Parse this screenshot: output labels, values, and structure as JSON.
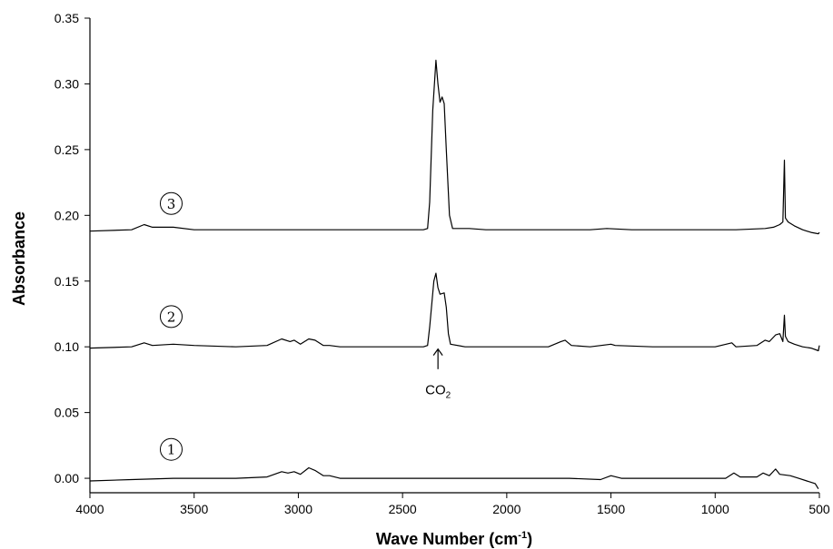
{
  "chart_data": {
    "type": "line",
    "title": "",
    "xlabel": "Wave Number (cm",
    "xlabel_sup": "-1",
    "xlabel_close": ")",
    "ylabel": "Absorbance",
    "xlim": [
      4000,
      500
    ],
    "ylim": [
      -0.011,
      0.35
    ],
    "x_ticks": [
      4000,
      3500,
      3000,
      2500,
      2000,
      1500,
      1000,
      500
    ],
    "x_tick_labels": [
      "4000",
      "3500",
      "3000",
      "2500",
      "2000",
      "1500",
      "1000",
      "500"
    ],
    "y_ticks": [
      0.0,
      0.05,
      0.1,
      0.15,
      0.2,
      0.25,
      0.3,
      0.35
    ],
    "y_tick_labels": [
      "0.00",
      "0.05",
      "0.10",
      "0.15",
      "0.20",
      "0.25",
      "0.30",
      "0.35"
    ],
    "grid": false,
    "series": [
      {
        "marker": "1",
        "marker_pos": [
          3610,
          0.022
        ],
        "points": [
          [
            4000,
            -0.002
          ],
          [
            3800,
            -0.001
          ],
          [
            3600,
            0.0
          ],
          [
            3300,
            0.0
          ],
          [
            3150,
            0.001
          ],
          [
            3080,
            0.005
          ],
          [
            3050,
            0.004
          ],
          [
            3020,
            0.005
          ],
          [
            2990,
            0.003
          ],
          [
            2950,
            0.008
          ],
          [
            2920,
            0.006
          ],
          [
            2880,
            0.002
          ],
          [
            2850,
            0.002
          ],
          [
            2800,
            0.0
          ],
          [
            2500,
            0.0
          ],
          [
            2350,
            0.0
          ],
          [
            2000,
            0.0
          ],
          [
            1700,
            0.0
          ],
          [
            1550,
            -0.001
          ],
          [
            1500,
            0.002
          ],
          [
            1450,
            0.0
          ],
          [
            1200,
            0.0
          ],
          [
            950,
            0.0
          ],
          [
            910,
            0.004
          ],
          [
            880,
            0.001
          ],
          [
            800,
            0.001
          ],
          [
            770,
            0.004
          ],
          [
            740,
            0.002
          ],
          [
            710,
            0.007
          ],
          [
            690,
            0.003
          ],
          [
            640,
            0.002
          ],
          [
            600,
            0.0
          ],
          [
            560,
            -0.002
          ],
          [
            520,
            -0.004
          ],
          [
            505,
            -0.008
          ]
        ]
      },
      {
        "marker": "2",
        "marker_pos": [
          3610,
          0.123
        ],
        "points": [
          [
            4000,
            0.099
          ],
          [
            3800,
            0.1
          ],
          [
            3740,
            0.103
          ],
          [
            3700,
            0.101
          ],
          [
            3600,
            0.102
          ],
          [
            3500,
            0.101
          ],
          [
            3300,
            0.1
          ],
          [
            3150,
            0.101
          ],
          [
            3080,
            0.106
          ],
          [
            3040,
            0.104
          ],
          [
            3020,
            0.105
          ],
          [
            2990,
            0.102
          ],
          [
            2950,
            0.106
          ],
          [
            2920,
            0.105
          ],
          [
            2880,
            0.101
          ],
          [
            2850,
            0.101
          ],
          [
            2800,
            0.1
          ],
          [
            2600,
            0.1
          ],
          [
            2400,
            0.1
          ],
          [
            2380,
            0.101
          ],
          [
            2370,
            0.115
          ],
          [
            2350,
            0.15
          ],
          [
            2340,
            0.156
          ],
          [
            2330,
            0.145
          ],
          [
            2320,
            0.14
          ],
          [
            2300,
            0.141
          ],
          [
            2290,
            0.13
          ],
          [
            2280,
            0.11
          ],
          [
            2270,
            0.102
          ],
          [
            2200,
            0.1
          ],
          [
            2000,
            0.1
          ],
          [
            1800,
            0.1
          ],
          [
            1740,
            0.104
          ],
          [
            1720,
            0.105
          ],
          [
            1690,
            0.101
          ],
          [
            1600,
            0.1
          ],
          [
            1500,
            0.102
          ],
          [
            1480,
            0.101
          ],
          [
            1300,
            0.1
          ],
          [
            1000,
            0.1
          ],
          [
            920,
            0.103
          ],
          [
            900,
            0.1
          ],
          [
            800,
            0.101
          ],
          [
            760,
            0.105
          ],
          [
            740,
            0.104
          ],
          [
            710,
            0.109
          ],
          [
            690,
            0.11
          ],
          [
            675,
            0.104
          ],
          [
            668,
            0.124
          ],
          [
            663,
            0.108
          ],
          [
            650,
            0.104
          ],
          [
            620,
            0.102
          ],
          [
            580,
            0.1
          ],
          [
            540,
            0.099
          ],
          [
            505,
            0.097
          ],
          [
            500,
            0.101
          ]
        ]
      },
      {
        "marker": "3",
        "marker_pos": [
          3610,
          0.209
        ],
        "points": [
          [
            4000,
            0.188
          ],
          [
            3800,
            0.189
          ],
          [
            3740,
            0.193
          ],
          [
            3700,
            0.191
          ],
          [
            3600,
            0.191
          ],
          [
            3500,
            0.189
          ],
          [
            3200,
            0.189
          ],
          [
            2700,
            0.189
          ],
          [
            2400,
            0.189
          ],
          [
            2380,
            0.19
          ],
          [
            2370,
            0.21
          ],
          [
            2355,
            0.28
          ],
          [
            2340,
            0.318
          ],
          [
            2330,
            0.3
          ],
          [
            2320,
            0.286
          ],
          [
            2310,
            0.29
          ],
          [
            2300,
            0.285
          ],
          [
            2290,
            0.25
          ],
          [
            2275,
            0.2
          ],
          [
            2260,
            0.19
          ],
          [
            2180,
            0.19
          ],
          [
            2100,
            0.189
          ],
          [
            1600,
            0.189
          ],
          [
            1520,
            0.19
          ],
          [
            1400,
            0.189
          ],
          [
            900,
            0.189
          ],
          [
            760,
            0.19
          ],
          [
            720,
            0.191
          ],
          [
            690,
            0.193
          ],
          [
            675,
            0.195
          ],
          [
            668,
            0.242
          ],
          [
            663,
            0.198
          ],
          [
            650,
            0.195
          ],
          [
            620,
            0.192
          ],
          [
            580,
            0.189
          ],
          [
            540,
            0.187
          ],
          [
            505,
            0.186
          ],
          [
            500,
            0.187
          ]
        ]
      }
    ],
    "annotations": [
      {
        "text": "CO",
        "sub": "2",
        "x": 2330,
        "y": 0.064,
        "arrow_from": [
          2330,
          0.083
        ],
        "arrow_to": [
          2330,
          0.099
        ]
      }
    ]
  }
}
